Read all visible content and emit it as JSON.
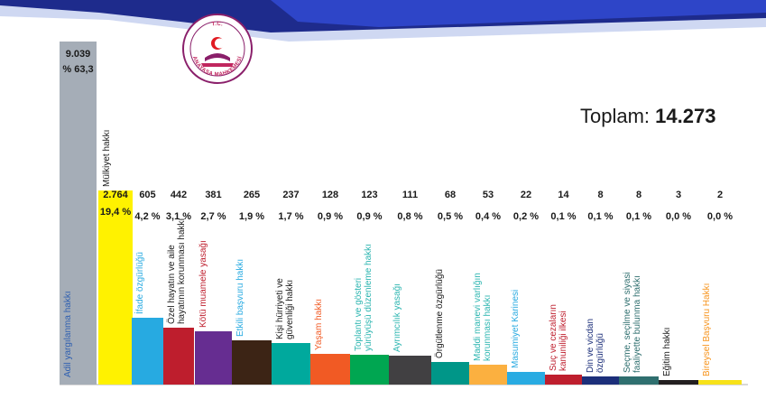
{
  "header": {
    "total_label": "Toplam:",
    "total_value": "14.273",
    "logo_top_text": "T.C.",
    "logo_bottom_text": "ANAYASA MAHKEMESİ"
  },
  "colors": {
    "banner_dark": "#1e2b8c",
    "banner_mid": "#2e45c8",
    "banner_light": "#cfd8f2"
  },
  "chart_data": {
    "type": "bar",
    "title": "",
    "ylabel": "",
    "xlabel": "",
    "categories": [
      "Adil yargılanma hakkı",
      "Mülkiyet hakkı",
      "İfade özgürlüğü",
      "Özel hayatın ve aile hayatının korunması hakkı",
      "Kötü muamele yasağı",
      "Etkili başvuru hakkı",
      "Kişi hürriyeti ve güvenliği hakkı",
      "Yaşam hakkı",
      "Toplantı ve gösteri yürüyüşü düzenleme hakkı",
      "Ayrımcılık yasağı",
      "Örgütlenme özgürlüğü",
      "Maddi manevi varlığın korunması hakkı",
      "Masumiyet Karinesi",
      "Suç ve cezaların kanuniliği ilkesi",
      "Din ve vicdan özgürlüğü",
      "Seçme, seçilme ve siyasi faaliyette bulunma hakkı",
      "Eğitim hakkı",
      "Bireysel Başvuru Hakkı"
    ],
    "values": [
      9039,
      2764,
      605,
      442,
      381,
      265,
      237,
      128,
      123,
      111,
      68,
      53,
      22,
      14,
      8,
      8,
      3,
      2
    ],
    "value_labels": [
      "9.039",
      "2.764",
      "605",
      "442",
      "381",
      "265",
      "237",
      "128",
      "123",
      "111",
      "68",
      "53",
      "22",
      "14",
      "8",
      "8",
      "3",
      "2"
    ],
    "percent_labels": [
      "% 63,3",
      "19,4 %",
      "4,2 %",
      "3,1 %",
      "2,7 %",
      "1,9 %",
      "1,7 %",
      "0,9 %",
      "0,9 %",
      "0,8 %",
      "0,5 %",
      "0,4 %",
      "0,2 %",
      "0,1 %",
      "0,1 %",
      "0,1 %",
      "0,0 %",
      "0,0 %"
    ],
    "bar_colors": [
      "#a5adb7",
      "#fff200",
      "#27aae1",
      "#be1e2d",
      "#662d91",
      "#3c2415",
      "#00a99d",
      "#f15a24",
      "#00a651",
      "#414042",
      "#009688",
      "#fbb040",
      "#29abe2",
      "#be1e2d",
      "#1c2f7a",
      "#2f6f6f",
      "#231f20",
      "#f7e21a"
    ],
    "label_colors": [
      "#2e5fb0",
      "#1a1a1a",
      "#27aae1",
      "#1a1a1a",
      "#be1e2d",
      "#27aae1",
      "#1a1a1a",
      "#f15a24",
      "#2bb5b0",
      "#2bb5b0",
      "#1a1a1a",
      "#2bb5b0",
      "#27aae1",
      "#be1e2d",
      "#1c2f7a",
      "#2f6f6f",
      "#1a1a1a",
      "#f7941d"
    ],
    "scale_note": "bars visually exaggerated for small values"
  }
}
